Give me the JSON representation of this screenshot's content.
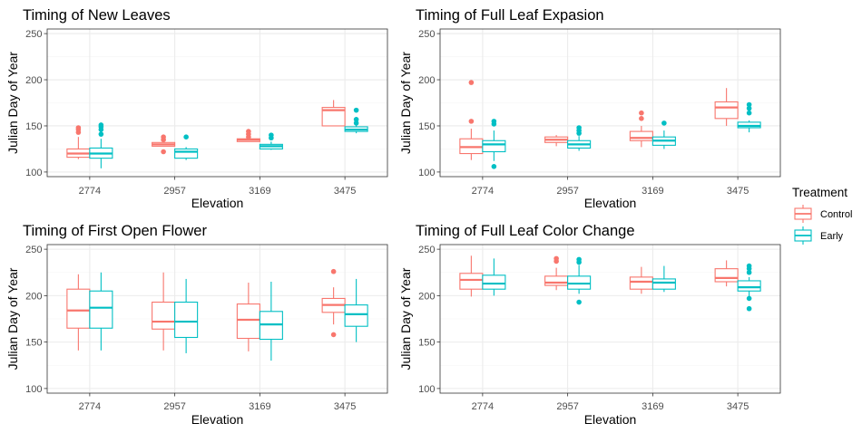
{
  "legend": {
    "title": "Treatment",
    "items": [
      {
        "label": "Control",
        "color": "#F8766D"
      },
      {
        "label": "Early",
        "color": "#00BFC4"
      }
    ]
  },
  "chart_data": [
    {
      "type": "boxplot",
      "title": "Timing of New Leaves",
      "xlabel": "Elevation",
      "ylabel": "Julian Day of Year",
      "ylim": [
        95,
        255
      ],
      "yticks": [
        100,
        150,
        200,
        250
      ],
      "categories": [
        "2774",
        "2957",
        "3169",
        "3475"
      ],
      "series": [
        {
          "name": "Control",
          "color": "#F8766D",
          "boxes": [
            {
              "low": 114,
              "q1": 116,
              "median": 120,
              "q3": 125,
              "high": 138,
              "outliers": [
                143,
                146,
                148
              ]
            },
            {
              "low": 128,
              "q1": 128,
              "median": 130,
              "q3": 132,
              "high": 133,
              "outliers": [
                122,
                135,
                138
              ]
            },
            {
              "low": 133,
              "q1": 133,
              "median": 135,
              "q3": 136,
              "high": 136,
              "outliers": [
                138,
                141,
                144
              ]
            },
            {
              "low": 150,
              "q1": 150,
              "median": 167,
              "q3": 170,
              "high": 178,
              "outliers": []
            }
          ]
        },
        {
          "name": "Early",
          "color": "#00BFC4",
          "boxes": [
            {
              "low": 104,
              "q1": 115,
              "median": 120,
              "q3": 126,
              "high": 136,
              "outliers": [
                141,
                146,
                149,
                151
              ]
            },
            {
              "low": 113,
              "q1": 115,
              "median": 122,
              "q3": 125,
              "high": 127,
              "outliers": [
                138
              ]
            },
            {
              "low": 124,
              "q1": 125,
              "median": 128,
              "q3": 130,
              "high": 133,
              "outliers": [
                137,
                140
              ]
            },
            {
              "low": 142,
              "q1": 144,
              "median": 146,
              "q3": 149,
              "high": 151,
              "outliers": [
                153,
                157,
                167
              ]
            }
          ]
        }
      ]
    },
    {
      "type": "boxplot",
      "title": "Timing of Full Leaf Expasion",
      "xlabel": "Elevation",
      "ylabel": "Julian Day of Year",
      "ylim": [
        95,
        255
      ],
      "yticks": [
        100,
        150,
        200,
        250
      ],
      "categories": [
        "2774",
        "2957",
        "3169",
        "3475"
      ],
      "series": [
        {
          "name": "Control",
          "color": "#F8766D",
          "boxes": [
            {
              "low": 113,
              "q1": 120,
              "median": 127,
              "q3": 136,
              "high": 147,
              "outliers": [
                155,
                197
              ]
            },
            {
              "low": 128,
              "q1": 132,
              "median": 135,
              "q3": 138,
              "high": 140,
              "outliers": []
            },
            {
              "low": 127,
              "q1": 134,
              "median": 137,
              "q3": 144,
              "high": 150,
              "outliers": [
                158,
                164
              ]
            },
            {
              "low": 150,
              "q1": 158,
              "median": 170,
              "q3": 176,
              "high": 191,
              "outliers": []
            }
          ]
        },
        {
          "name": "Early",
          "color": "#00BFC4",
          "boxes": [
            {
              "low": 112,
              "q1": 122,
              "median": 130,
              "q3": 134,
              "high": 145,
              "outliers": [
                106,
                152,
                155
              ]
            },
            {
              "low": 123,
              "q1": 126,
              "median": 130,
              "q3": 134,
              "high": 139,
              "outliers": [
                142,
                145,
                148
              ]
            },
            {
              "low": 125,
              "q1": 129,
              "median": 134,
              "q3": 138,
              "high": 145,
              "outliers": [
                153
              ]
            },
            {
              "low": 143,
              "q1": 148,
              "median": 150,
              "q3": 154,
              "high": 156,
              "outliers": [
                164,
                169,
                173
              ]
            }
          ]
        }
      ]
    },
    {
      "type": "boxplot",
      "title": "Timing of First Open Flower",
      "xlabel": "Elevation",
      "ylabel": "Julian Day of Year",
      "ylim": [
        95,
        255
      ],
      "yticks": [
        100,
        150,
        200,
        250
      ],
      "categories": [
        "2774",
        "2957",
        "3169",
        "3475"
      ],
      "series": [
        {
          "name": "Control",
          "color": "#F8766D",
          "boxes": [
            {
              "low": 141,
              "q1": 165,
              "median": 184,
              "q3": 207,
              "high": 223,
              "outliers": []
            },
            {
              "low": 141,
              "q1": 164,
              "median": 172,
              "q3": 193,
              "high": 225,
              "outliers": []
            },
            {
              "low": 140,
              "q1": 154,
              "median": 174,
              "q3": 191,
              "high": 214,
              "outliers": []
            },
            {
              "low": 169,
              "q1": 182,
              "median": 190,
              "q3": 197,
              "high": 209,
              "outliers": [
                158,
                226
              ]
            }
          ]
        },
        {
          "name": "Early",
          "color": "#00BFC4",
          "boxes": [
            {
              "low": 141,
              "q1": 165,
              "median": 187,
              "q3": 205,
              "high": 225,
              "outliers": []
            },
            {
              "low": 138,
              "q1": 155,
              "median": 172,
              "q3": 193,
              "high": 218,
              "outliers": []
            },
            {
              "low": 130,
              "q1": 153,
              "median": 169,
              "q3": 183,
              "high": 215,
              "outliers": []
            },
            {
              "low": 150,
              "q1": 167,
              "median": 180,
              "q3": 190,
              "high": 218,
              "outliers": []
            }
          ]
        }
      ]
    },
    {
      "type": "boxplot",
      "title": "Timing of Full Leaf Color Change",
      "xlabel": "Elevation",
      "ylabel": "Julian Day of Year",
      "ylim": [
        95,
        255
      ],
      "yticks": [
        100,
        150,
        200,
        250
      ],
      "categories": [
        "2774",
        "2957",
        "3169",
        "3475"
      ],
      "series": [
        {
          "name": "Control",
          "color": "#F8766D",
          "boxes": [
            {
              "low": 199,
              "q1": 207,
              "median": 217,
              "q3": 224,
              "high": 243,
              "outliers": []
            },
            {
              "low": 206,
              "q1": 211,
              "median": 214,
              "q3": 221,
              "high": 230,
              "outliers": [
                237,
                240
              ]
            },
            {
              "low": 202,
              "q1": 207,
              "median": 215,
              "q3": 220,
              "high": 231,
              "outliers": []
            },
            {
              "low": 210,
              "q1": 215,
              "median": 219,
              "q3": 229,
              "high": 238,
              "outliers": []
            }
          ]
        },
        {
          "name": "Early",
          "color": "#00BFC4",
          "boxes": [
            {
              "low": 200,
              "q1": 207,
              "median": 213,
              "q3": 222,
              "high": 240,
              "outliers": []
            },
            {
              "low": 202,
              "q1": 207,
              "median": 213,
              "q3": 221,
              "high": 233,
              "outliers": [
                193,
                236,
                239
              ]
            },
            {
              "low": 204,
              "q1": 207,
              "median": 214,
              "q3": 218,
              "high": 232,
              "outliers": []
            },
            {
              "low": 199,
              "q1": 205,
              "median": 209,
              "q3": 216,
              "high": 220,
              "outliers": [
                186,
                197,
                225,
                229,
                232
              ]
            }
          ]
        }
      ]
    }
  ]
}
